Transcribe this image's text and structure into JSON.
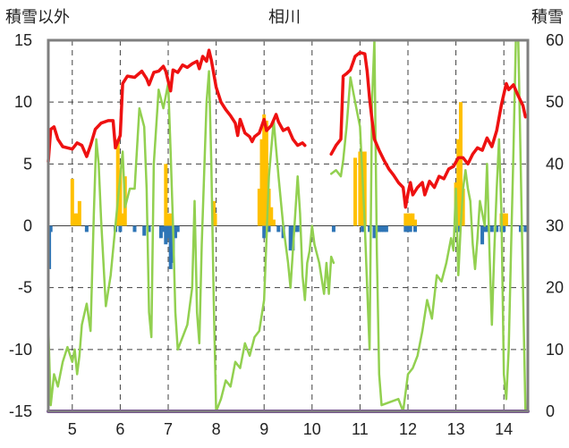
{
  "chart_data": {
    "type": "line",
    "title": "相川",
    "y_left_label": "積雪以外",
    "y_right_label": "積雪",
    "x_range": [
      4.5,
      14.5
    ],
    "x_ticks": [
      5,
      6,
      7,
      8,
      9,
      10,
      11,
      12,
      13,
      14
    ],
    "y_left_range": [
      -15,
      15
    ],
    "y_left_ticks": [
      -15,
      -10,
      -5,
      0,
      5,
      10,
      15
    ],
    "y_right_range": [
      0,
      60
    ],
    "y_right_ticks": [
      0,
      10,
      20,
      30,
      40,
      50,
      60
    ],
    "grid": true,
    "colors": {
      "red_line": "#ee1111",
      "green_line": "#92d050",
      "yellow_bars": "#ffc000",
      "blue_bars": "#2e75b6",
      "purple_line": "#7030a0",
      "frame": "#7f7f7f"
    },
    "series_red": [
      [
        4.5,
        5.2
      ],
      [
        4.55,
        7.8
      ],
      [
        4.62,
        8.0
      ],
      [
        4.7,
        7.0
      ],
      [
        4.8,
        6.4
      ],
      [
        4.9,
        6.3
      ],
      [
        5.0,
        6.2
      ],
      [
        5.1,
        6.7
      ],
      [
        5.2,
        6.5
      ],
      [
        5.3,
        5.6
      ],
      [
        5.38,
        6.5
      ],
      [
        5.48,
        7.8
      ],
      [
        5.6,
        8.3
      ],
      [
        5.75,
        8.5
      ],
      [
        5.85,
        8.5
      ],
      [
        5.9,
        6.3
      ],
      [
        6.0,
        7.3
      ],
      [
        6.05,
        11.5
      ],
      [
        6.15,
        12.1
      ],
      [
        6.3,
        12.0
      ],
      [
        6.45,
        12.5
      ],
      [
        6.55,
        11.9
      ],
      [
        6.6,
        11.4
      ],
      [
        6.7,
        12.4
      ],
      [
        6.8,
        12.5
      ],
      [
        6.9,
        12.9
      ],
      [
        6.95,
        12.5
      ],
      [
        7.05,
        10.9
      ],
      [
        7.1,
        12.6
      ],
      [
        7.2,
        12.4
      ],
      [
        7.3,
        13.0
      ],
      [
        7.4,
        12.8
      ],
      [
        7.5,
        13.1
      ],
      [
        7.6,
        13.3
      ],
      [
        7.65,
        12.7
      ],
      [
        7.72,
        13.7
      ],
      [
        7.8,
        13.3
      ],
      [
        7.85,
        14.2
      ],
      [
        7.9,
        13.4
      ],
      [
        8.0,
        11.2
      ],
      [
        8.1,
        10.0
      ],
      [
        8.2,
        9.4
      ],
      [
        8.3,
        8.9
      ],
      [
        8.4,
        8.3
      ],
      [
        8.45,
        7.3
      ],
      [
        8.5,
        8.6
      ],
      [
        8.6,
        7.5
      ],
      [
        8.7,
        7.2
      ],
      [
        8.75,
        6.8
      ],
      [
        8.8,
        7.2
      ],
      [
        8.9,
        7.5
      ],
      [
        9.0,
        8.6
      ],
      [
        9.05,
        7.7
      ],
      [
        9.15,
        8.1
      ],
      [
        9.25,
        9.0
      ],
      [
        9.3,
        8.4
      ],
      [
        9.4,
        7.7
      ],
      [
        9.5,
        7.9
      ],
      [
        9.6,
        7.0
      ],
      [
        9.7,
        6.5
      ],
      [
        9.8,
        6.7
      ],
      [
        9.85,
        6.5
      ]
    ],
    "series_red_2": [
      [
        10.4,
        5.8
      ],
      [
        10.5,
        6.5
      ],
      [
        10.6,
        7.0
      ],
      [
        10.65,
        12.1
      ],
      [
        10.72,
        12.3
      ],
      [
        10.8,
        12.6
      ],
      [
        10.9,
        13.7
      ],
      [
        11.0,
        14.0
      ],
      [
        11.1,
        13.9
      ],
      [
        11.15,
        12.5
      ],
      [
        11.2,
        10.3
      ],
      [
        11.25,
        8.6
      ],
      [
        11.3,
        7.0
      ],
      [
        11.4,
        6.1
      ],
      [
        11.5,
        5.3
      ],
      [
        11.6,
        4.6
      ],
      [
        11.7,
        4.1
      ],
      [
        11.8,
        3.5
      ],
      [
        11.9,
        3.1
      ],
      [
        11.95,
        1.5
      ],
      [
        12.0,
        2.6
      ],
      [
        12.05,
        3.5
      ],
      [
        12.1,
        2.5
      ],
      [
        12.2,
        3.1
      ],
      [
        12.3,
        3.5
      ],
      [
        12.35,
        2.5
      ],
      [
        12.45,
        3.6
      ],
      [
        12.55,
        3.1
      ],
      [
        12.65,
        4.0
      ],
      [
        12.75,
        3.8
      ],
      [
        12.85,
        4.6
      ],
      [
        12.95,
        4.8
      ],
      [
        13.05,
        5.5
      ],
      [
        13.15,
        5.5
      ],
      [
        13.25,
        5.0
      ],
      [
        13.35,
        5.8
      ],
      [
        13.45,
        6.3
      ],
      [
        13.55,
        6.1
      ],
      [
        13.65,
        7.1
      ],
      [
        13.75,
        6.4
      ],
      [
        13.85,
        7.7
      ],
      [
        13.95,
        9.8
      ],
      [
        14.05,
        11.5
      ],
      [
        14.1,
        11.0
      ],
      [
        14.2,
        11.4
      ],
      [
        14.3,
        10.5
      ],
      [
        14.4,
        9.7
      ],
      [
        14.45,
        8.8
      ]
    ],
    "series_green": [
      [
        4.5,
        -8.2
      ],
      [
        4.55,
        -14.5
      ],
      [
        4.62,
        -12.0
      ],
      [
        4.7,
        -13.0
      ],
      [
        4.8,
        -11.0
      ],
      [
        4.9,
        -9.8
      ],
      [
        5.0,
        -11.0
      ],
      [
        5.05,
        -10.0
      ],
      [
        5.1,
        -12.0
      ],
      [
        5.15,
        -10.5
      ],
      [
        5.2,
        -8.0
      ],
      [
        5.3,
        -6.3
      ],
      [
        5.38,
        -8.5
      ],
      [
        5.45,
        1.0
      ],
      [
        5.5,
        7.0
      ],
      [
        5.55,
        5.0
      ],
      [
        5.6,
        0.5
      ],
      [
        5.7,
        -6.5
      ],
      [
        5.8,
        -4.0
      ],
      [
        5.9,
        0.0
      ],
      [
        6.0,
        4.0
      ],
      [
        6.05,
        6.0
      ],
      [
        6.1,
        1.5
      ],
      [
        6.2,
        3.0
      ],
      [
        6.3,
        3.0
      ],
      [
        6.4,
        9.5
      ],
      [
        6.5,
        8.0
      ],
      [
        6.55,
        3.0
      ],
      [
        6.6,
        -7.0
      ],
      [
        6.65,
        -9.0
      ],
      [
        6.7,
        5.0
      ],
      [
        6.8,
        11.0
      ],
      [
        6.9,
        9.5
      ],
      [
        7.0,
        11.5
      ],
      [
        7.05,
        6.0
      ],
      [
        7.1,
        0.0
      ],
      [
        7.15,
        -7.0
      ],
      [
        7.2,
        -10.0
      ],
      [
        7.3,
        -9.0
      ],
      [
        7.4,
        -8.0
      ],
      [
        7.5,
        -5.0
      ],
      [
        7.55,
        2.0
      ],
      [
        7.6,
        -7.0
      ],
      [
        7.65,
        -9.5
      ],
      [
        7.7,
        -1.5
      ],
      [
        7.8,
        10.0
      ],
      [
        7.85,
        12.5
      ],
      [
        7.9,
        5.0
      ],
      [
        7.95,
        -6.0
      ],
      [
        8.0,
        -15.0
      ],
      [
        8.1,
        -14.0
      ],
      [
        8.2,
        -12.5
      ],
      [
        8.3,
        -13.0
      ],
      [
        8.4,
        -11.0
      ],
      [
        8.5,
        -11.5
      ],
      [
        8.6,
        -9.5
      ],
      [
        8.7,
        -10.5
      ],
      [
        8.8,
        -9.0
      ],
      [
        8.9,
        -8.5
      ],
      [
        9.0,
        -6.0
      ],
      [
        9.1,
        4.0
      ],
      [
        9.2,
        8.5
      ],
      [
        9.3,
        4.0
      ],
      [
        9.4,
        0.0
      ],
      [
        9.5,
        -3.0
      ],
      [
        9.55,
        -5.0
      ],
      [
        9.6,
        -2.0
      ],
      [
        9.7,
        4.0
      ],
      [
        9.75,
        1.0
      ],
      [
        9.8,
        -4.0
      ],
      [
        9.85,
        -6.0
      ],
      [
        9.9,
        -3.0
      ],
      [
        9.95,
        -2.0
      ],
      [
        10.0,
        0.0
      ],
      [
        10.05,
        -1.5
      ],
      [
        10.15,
        -3.0
      ],
      [
        10.25,
        -5.5
      ],
      [
        10.3,
        -3.0
      ],
      [
        10.35,
        -5.5
      ],
      [
        10.4,
        -2.5
      ],
      [
        10.45,
        -3.0
      ]
    ],
    "series_green_2": [
      [
        10.4,
        4.2
      ],
      [
        10.5,
        4.5
      ],
      [
        10.6,
        4.0
      ],
      [
        10.65,
        5.3
      ],
      [
        10.72,
        8.0
      ],
      [
        10.8,
        12.0
      ],
      [
        10.9,
        10.0
      ],
      [
        11.0,
        8.0
      ],
      [
        11.05,
        4.0
      ],
      [
        11.1,
        0.0
      ],
      [
        11.15,
        -5.0
      ],
      [
        11.2,
        -10.0
      ],
      [
        11.25,
        10.0
      ],
      [
        11.3,
        15.0
      ],
      [
        11.35,
        -2.0
      ],
      [
        11.4,
        -12.0
      ],
      [
        11.45,
        -14.5
      ],
      [
        11.8,
        -14.0
      ],
      [
        11.9,
        -15.0
      ],
      [
        12.0,
        -12.0
      ],
      [
        12.1,
        -11.5
      ],
      [
        12.2,
        -10.5
      ],
      [
        12.3,
        -8.5
      ],
      [
        12.4,
        -6.0
      ],
      [
        12.5,
        -7.5
      ],
      [
        12.6,
        -4.0
      ],
      [
        12.7,
        -4.5
      ],
      [
        12.8,
        -3.0
      ],
      [
        12.9,
        -1.0
      ],
      [
        12.95,
        -2.0
      ],
      [
        13.0,
        3.0
      ],
      [
        13.05,
        -4.0
      ],
      [
        13.1,
        0.0
      ],
      [
        13.15,
        3.0
      ],
      [
        13.2,
        4.5
      ],
      [
        13.25,
        3.0
      ],
      [
        13.3,
        2.0
      ],
      [
        13.35,
        -1.5
      ],
      [
        13.4,
        -3.5
      ],
      [
        13.45,
        -1.0
      ],
      [
        13.5,
        2.0
      ],
      [
        13.55,
        1.0
      ],
      [
        13.6,
        0.0
      ],
      [
        13.65,
        5.0
      ],
      [
        13.7,
        -2.0
      ],
      [
        13.75,
        -8.0
      ],
      [
        13.8,
        -2.0
      ],
      [
        13.85,
        3.0
      ],
      [
        13.9,
        7.0
      ],
      [
        13.95,
        1.0
      ],
      [
        14.0,
        -12.0
      ],
      [
        14.05,
        -14.0
      ],
      [
        14.1,
        -10.0
      ],
      [
        14.15,
        -2.0
      ],
      [
        14.2,
        6.0
      ],
      [
        14.25,
        15.0
      ],
      [
        14.3,
        15.0
      ],
      [
        14.35,
        5.0
      ],
      [
        14.4,
        -5.0
      ],
      [
        14.45,
        -15.0
      ]
    ],
    "bars_yellow": [
      [
        5.0,
        3.8
      ],
      [
        5.05,
        1.0
      ],
      [
        5.1,
        1.0
      ],
      [
        5.15,
        2.0
      ],
      [
        5.95,
        7.0
      ],
      [
        6.0,
        4.5
      ],
      [
        6.05,
        1.0
      ],
      [
        6.1,
        4.0
      ],
      [
        6.95,
        5.0
      ],
      [
        7.0,
        1.0
      ],
      [
        7.05,
        1.0
      ],
      [
        7.95,
        2.0
      ],
      [
        7.98,
        1.0
      ],
      [
        8.9,
        3.0
      ],
      [
        8.95,
        7.0
      ],
      [
        9.0,
        9.0
      ],
      [
        9.05,
        8.5
      ],
      [
        9.1,
        3.0
      ],
      [
        9.15,
        1.5
      ],
      [
        9.2,
        0.5
      ],
      [
        10.9,
        5.5
      ],
      [
        11.0,
        6.0
      ],
      [
        11.05,
        6.0
      ],
      [
        11.1,
        6.0
      ],
      [
        11.95,
        1.0
      ],
      [
        12.0,
        1.0
      ],
      [
        12.05,
        1.0
      ],
      [
        12.1,
        1.0
      ],
      [
        12.15,
        0.5
      ],
      [
        13.0,
        3.5
      ],
      [
        13.05,
        7.0
      ],
      [
        13.1,
        10.0
      ],
      [
        13.15,
        3.0
      ],
      [
        13.95,
        1.0
      ],
      [
        14.0,
        1.0
      ],
      [
        14.05,
        1.0
      ]
    ],
    "bars_blue": [
      [
        4.52,
        -3.5
      ],
      [
        4.55,
        -0.5
      ],
      [
        5.3,
        -0.5
      ],
      [
        5.9,
        -0.5
      ],
      [
        6.0,
        -0.5
      ],
      [
        6.3,
        -0.5
      ],
      [
        6.5,
        -0.8
      ],
      [
        6.6,
        -0.5
      ],
      [
        6.85,
        -1.0
      ],
      [
        6.9,
        -0.5
      ],
      [
        6.95,
        -1.5
      ],
      [
        7.0,
        -1.0
      ],
      [
        7.05,
        -3.5
      ],
      [
        7.1,
        -3.0
      ],
      [
        7.15,
        -1.0
      ],
      [
        7.2,
        -0.5
      ],
      [
        9.0,
        -1.0
      ],
      [
        9.1,
        -0.5
      ],
      [
        9.3,
        -0.5
      ],
      [
        9.4,
        -1.0
      ],
      [
        9.55,
        -2.0
      ],
      [
        9.6,
        -2.0
      ],
      [
        9.65,
        -0.5
      ],
      [
        9.7,
        -0.5
      ],
      [
        10.45,
        -0.5
      ],
      [
        11.05,
        -0.5
      ],
      [
        11.2,
        -0.5
      ],
      [
        11.3,
        -1.0
      ],
      [
        11.35,
        -0.5
      ],
      [
        11.4,
        -0.5
      ],
      [
        11.45,
        -0.5
      ],
      [
        11.5,
        -0.5
      ],
      [
        11.55,
        -0.5
      ],
      [
        11.95,
        -0.5
      ],
      [
        12.0,
        -0.5
      ],
      [
        12.05,
        -0.5
      ],
      [
        12.15,
        -0.5
      ],
      [
        13.0,
        -0.5
      ],
      [
        13.05,
        -0.5
      ],
      [
        13.55,
        -1.5
      ],
      [
        13.6,
        -0.5
      ],
      [
        13.65,
        -0.5
      ],
      [
        13.75,
        -0.5
      ],
      [
        13.85,
        -0.5
      ],
      [
        13.95,
        -0.5
      ],
      [
        14.0,
        -0.5
      ],
      [
        14.35,
        -0.5
      ],
      [
        14.45,
        -0.5
      ]
    ],
    "series_purple": [
      [
        4.5,
        -15
      ],
      [
        10.3,
        -15
      ],
      [
        10.4,
        -15
      ],
      [
        14.5,
        -15
      ]
    ]
  }
}
